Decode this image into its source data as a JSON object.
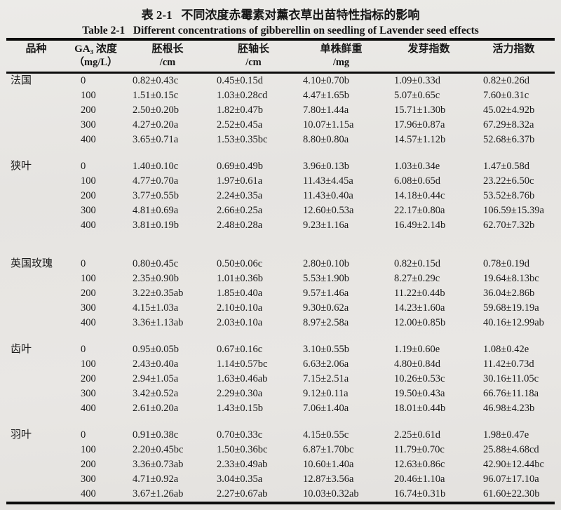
{
  "page": {
    "title_cn": "表 2-1   不同浓度赤霉素对薰衣草出苗特性指标的影响",
    "title_en": "Table 2-1   Different concentrations of gibberellin on seedling of Lavender seed effects"
  },
  "table": {
    "columns": [
      {
        "title": "品种",
        "unit": ""
      },
      {
        "title": "GA₃ 浓度",
        "unit": "（mg/L）"
      },
      {
        "title": "胚根长",
        "unit": "/cm"
      },
      {
        "title": "胚轴长",
        "unit": "/cm"
      },
      {
        "title": "单株鲜重",
        "unit": "/mg"
      },
      {
        "title": "发芽指数",
        "unit": ""
      },
      {
        "title": "活力指数",
        "unit": ""
      }
    ],
    "groups": [
      {
        "variety": "法国",
        "gap_after": "normal",
        "rows": [
          {
            "concentration": "0",
            "values": [
              "0.82±0.43c",
              "0.45±0.15d",
              "4.10±0.70b",
              "1.09±0.33d",
              "0.82±0.26d"
            ]
          },
          {
            "concentration": "100",
            "values": [
              "1.51±0.15c",
              "1.03±0.28cd",
              "4.47±1.65b",
              "5.07±0.65c",
              "7.60±0.31c"
            ]
          },
          {
            "concentration": "200",
            "values": [
              "2.50±0.20b",
              "1.82±0.47b",
              "7.80±1.44a",
              "15.71±1.30b",
              "45.02±4.92b"
            ]
          },
          {
            "concentration": "300",
            "values": [
              "4.27±0.20a",
              "2.52±0.45a",
              "10.07±1.15a",
              "17.96±0.87a",
              "67.29±8.32a"
            ]
          },
          {
            "concentration": "400",
            "values": [
              "3.65±0.71a",
              "1.53±0.35bc",
              "8.80±0.80a",
              "14.57±1.12b",
              "52.68±6.37b"
            ]
          }
        ]
      },
      {
        "variety": "狭叶",
        "gap_after": "large",
        "rows": [
          {
            "concentration": "0",
            "values": [
              "1.40±0.10c",
              "0.69±0.49b",
              "3.96±0.13b",
              "1.03±0.34e",
              "1.47±0.58d"
            ]
          },
          {
            "concentration": "100",
            "values": [
              "4.77±0.70a",
              "1.97±0.61a",
              "11.43±4.45a",
              "6.08±0.65d",
              "23.22±6.50c"
            ]
          },
          {
            "concentration": "200",
            "values": [
              "3.77±0.55b",
              "2.24±0.35a",
              "11.43±0.40a",
              "14.18±0.44c",
              "53.52±8.76b"
            ]
          },
          {
            "concentration": "300",
            "values": [
              "4.81±0.69a",
              "2.66±0.25a",
              "12.60±0.53a",
              "22.17±0.80a",
              "106.59±15.39a"
            ]
          },
          {
            "concentration": "400",
            "values": [
              "3.81±0.19b",
              "2.48±0.28a",
              "9.23±1.16a",
              "16.49±2.14b",
              "62.70±7.32b"
            ]
          }
        ]
      },
      {
        "variety": "英国玫瑰",
        "gap_after": "normal",
        "rows": [
          {
            "concentration": "0",
            "values": [
              "0.80±0.45c",
              "0.50±0.06c",
              "2.80±0.10b",
              "0.82±0.15d",
              "0.78±0.19d"
            ]
          },
          {
            "concentration": "100",
            "values": [
              "2.35±0.90b",
              "1.01±0.36b",
              "5.53±1.90b",
              "8.27±0.29c",
              "19.64±8.13bc"
            ]
          },
          {
            "concentration": "200",
            "values": [
              "3.22±0.35ab",
              "1.85±0.40a",
              "9.57±1.46a",
              "11.22±0.44b",
              "36.04±2.86b"
            ]
          },
          {
            "concentration": "300",
            "values": [
              "4.15±1.03a",
              "2.10±0.10a",
              "9.30±0.62a",
              "14.23±1.60a",
              "59.68±19.19a"
            ]
          },
          {
            "concentration": "400",
            "values": [
              "3.36±1.13ab",
              "2.03±0.10a",
              "8.97±2.58a",
              "12.00±0.85b",
              "40.16±12.99ab"
            ]
          }
        ]
      },
      {
        "variety": "齿叶",
        "gap_after": "normal",
        "rows": [
          {
            "concentration": "0",
            "values": [
              "0.95±0.05b",
              "0.67±0.16c",
              "3.10±0.55b",
              "1.19±0.60e",
              "1.08±0.42e"
            ]
          },
          {
            "concentration": "100",
            "values": [
              "2.43±0.40a",
              "1.14±0.57bc",
              "6.63±2.06a",
              "4.80±0.84d",
              "11.42±0.73d"
            ]
          },
          {
            "concentration": "200",
            "values": [
              "2.94±1.05a",
              "1.63±0.46ab",
              "7.15±2.51a",
              "10.26±0.53c",
              "30.16±11.05c"
            ]
          },
          {
            "concentration": "300",
            "values": [
              "3.42±0.52a",
              "2.29±0.30a",
              "9.12±0.11a",
              "19.50±0.43a",
              "66.76±11.18a"
            ]
          },
          {
            "concentration": "400",
            "values": [
              "2.61±0.20a",
              "1.43±0.15b",
              "7.06±1.40a",
              "18.01±0.44b",
              "46.98±4.23b"
            ]
          }
        ]
      },
      {
        "variety": "羽叶",
        "gap_after": "none",
        "rows": [
          {
            "concentration": "0",
            "values": [
              "0.91±0.38c",
              "0.70±0.33c",
              "4.15±0.55c",
              "2.25±0.61d",
              "1.98±0.47e"
            ]
          },
          {
            "concentration": "100",
            "values": [
              "2.20±0.45bc",
              "1.50±0.36bc",
              "6.87±1.70bc",
              "11.79±0.70c",
              "25.88±4.68cd"
            ]
          },
          {
            "concentration": "200",
            "values": [
              "3.36±0.73ab",
              "2.33±0.49ab",
              "10.60±1.40a",
              "12.63±0.86c",
              "42.90±12.44bc"
            ]
          },
          {
            "concentration": "300",
            "values": [
              "4.71±0.92a",
              "3.04±0.35a",
              "12.87±3.56a",
              "20.46±1.10a",
              "96.07±17.10a"
            ]
          },
          {
            "concentration": "400",
            "values": [
              "3.67±1.26ab",
              "2.27±0.67ab",
              "10.03±0.32ab",
              "16.74±0.31b",
              "61.60±22.30b"
            ]
          }
        ]
      }
    ]
  }
}
